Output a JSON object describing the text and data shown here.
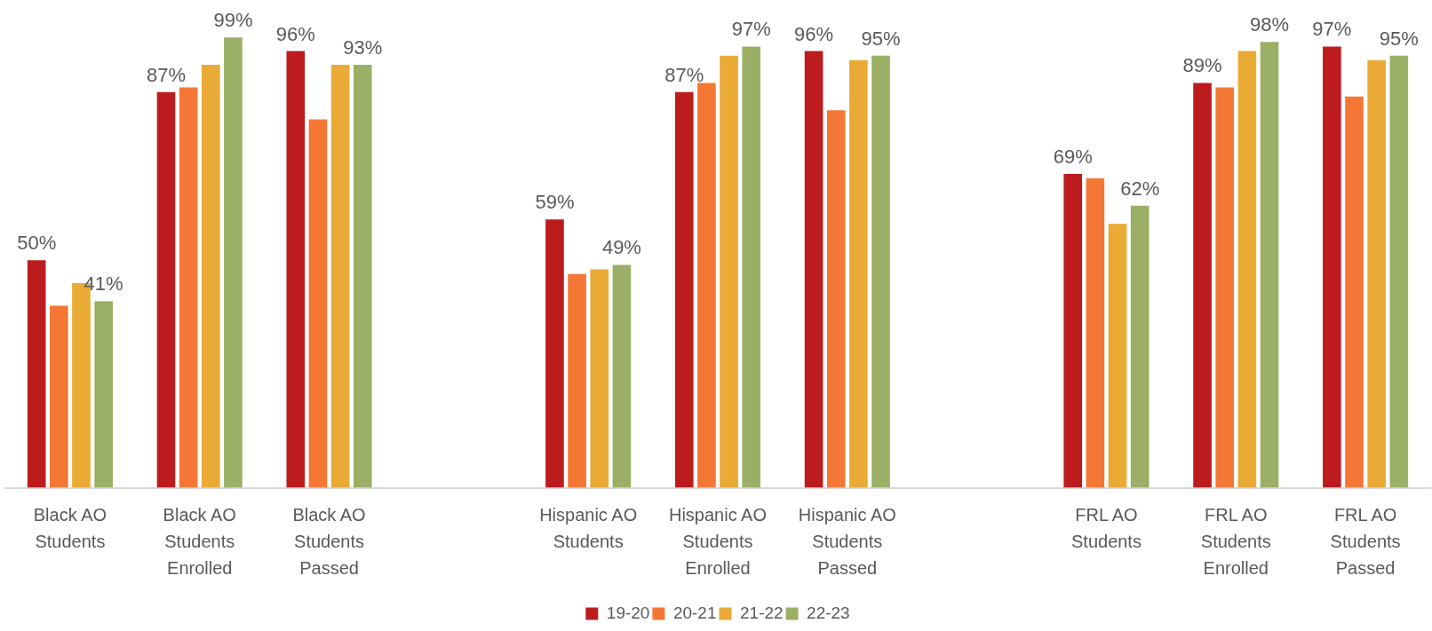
{
  "chart_data": {
    "type": "bar",
    "categories": [
      "Black AO Students",
      "Black AO Students Enrolled",
      "Black AO Students Passed",
      null,
      "Hispanic AO Students",
      "Hispanic AO Students Enrolled",
      "Hispanic AO Students Passed",
      null,
      "FRL AO Students",
      "FRL AO Students Enrolled",
      "FRL AO Students Passed"
    ],
    "series": [
      {
        "name": "19-20",
        "color": "#bc1c1e",
        "values": [
          50,
          87,
          96,
          null,
          59,
          87,
          96,
          null,
          69,
          89,
          97
        ],
        "value_labels": [
          "50%",
          "87%",
          "96%",
          null,
          "59%",
          "87%",
          "96%",
          null,
          "69%",
          "89%",
          "97%"
        ]
      },
      {
        "name": "20-21",
        "color": "#f47735",
        "values": [
          40,
          88,
          81,
          null,
          47,
          89,
          83,
          null,
          68,
          88,
          86
        ]
      },
      {
        "name": "21-22",
        "color": "#e9ab36",
        "values": [
          45,
          93,
          93,
          null,
          48,
          95,
          94,
          null,
          58,
          96,
          94
        ]
      },
      {
        "name": "22-23",
        "color": "#9caf67",
        "values": [
          41,
          99,
          93,
          null,
          49,
          97,
          95,
          null,
          62,
          98,
          95
        ],
        "value_labels": [
          "41%",
          "99%",
          "93%",
          null,
          "49%",
          "97%",
          "95%",
          null,
          "62%",
          "98%",
          "95%"
        ]
      }
    ],
    "legend": "bottom",
    "grid": false
  }
}
